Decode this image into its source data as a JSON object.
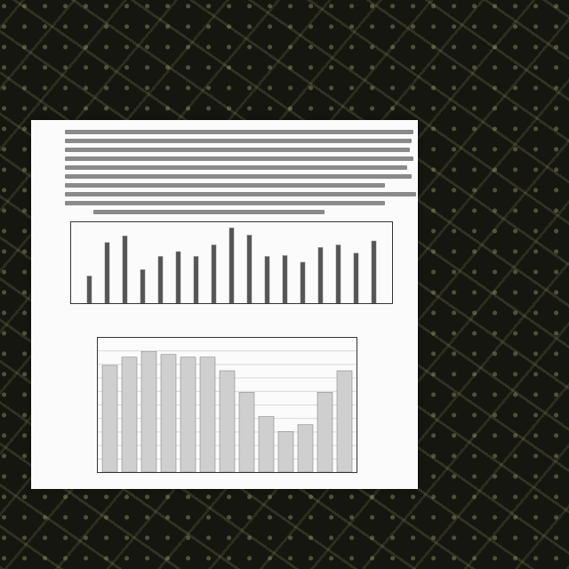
{
  "chart_data": [
    {
      "type": "bar",
      "categories": [
        null,
        null,
        null,
        null,
        null,
        null,
        null,
        null,
        null,
        null,
        null,
        null,
        null,
        null,
        null,
        null,
        null
      ],
      "values": [
        33,
        74,
        82,
        41,
        57,
        63,
        57,
        71,
        92,
        83,
        57,
        58,
        50,
        68,
        71,
        61,
        76
      ],
      "color": "#555555",
      "ylim": [
        0,
        100
      ],
      "tick_labels": false
    },
    {
      "type": "bar",
      "categories": [
        null,
        null,
        null,
        null,
        null,
        null,
        null,
        null,
        null,
        null,
        null,
        null,
        null
      ],
      "values": [
        79,
        85,
        89,
        87,
        85,
        85,
        75,
        59,
        41,
        30,
        35,
        59,
        75
      ],
      "color": "#cfcfcf",
      "ylim": [
        0,
        100
      ],
      "yticks": [
        0,
        10,
        20,
        30,
        40,
        50,
        60,
        70,
        80,
        90,
        100
      ],
      "grid": true,
      "tick_labels": false
    }
  ]
}
